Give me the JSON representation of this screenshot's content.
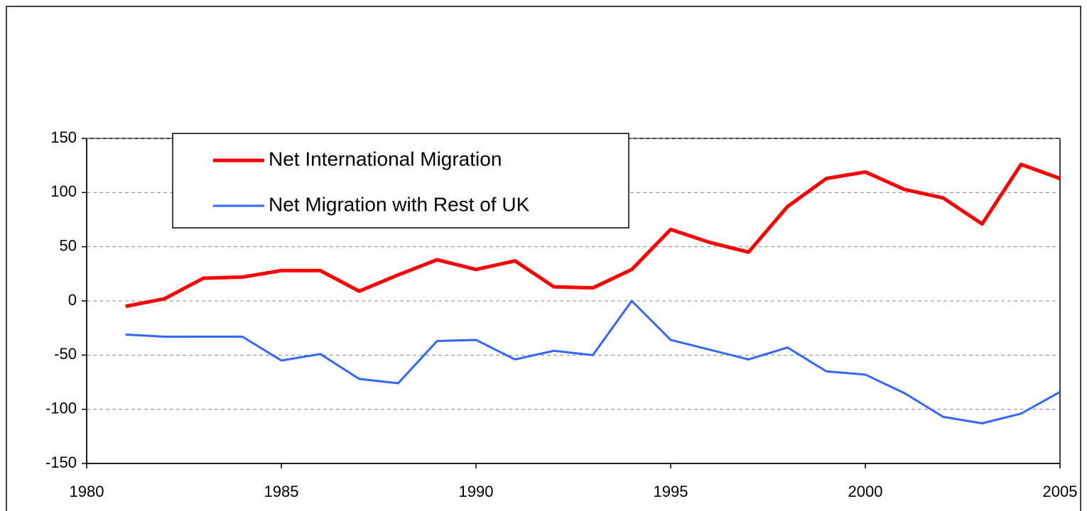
{
  "chart_data": {
    "type": "line",
    "x": [
      1981,
      1982,
      1983,
      1984,
      1985,
      1986,
      1987,
      1988,
      1989,
      1990,
      1991,
      1992,
      1993,
      1994,
      1995,
      1996,
      1997,
      1998,
      1999,
      2000,
      2001,
      2002,
      2003,
      2004,
      2005
    ],
    "series": [
      {
        "name": "Net International Migration",
        "color": "#ff0000",
        "width": 5,
        "values": [
          -5,
          2,
          21,
          22,
          28,
          28,
          9,
          24,
          38,
          29,
          37,
          13,
          12,
          29,
          66,
          54,
          45,
          87,
          113,
          119,
          103,
          95,
          71,
          126,
          113
        ]
      },
      {
        "name": "Net Migration with Rest of UK",
        "color": "#3366ff",
        "width": 3,
        "values": [
          -31,
          -33,
          -33,
          -33,
          -55,
          -49,
          -72,
          -76,
          -37,
          -36,
          -54,
          -46,
          -50,
          0,
          -36,
          -45,
          -54,
          -43,
          -65,
          -68,
          -85,
          -107,
          -113,
          -104,
          -84
        ]
      }
    ],
    "xlim": [
      1980,
      2005
    ],
    "xticks": [
      1980,
      1985,
      1990,
      1995,
      2000,
      2005
    ],
    "ylim": [
      -150,
      150
    ],
    "yticks": [
      -150,
      -100,
      -50,
      0,
      50,
      100,
      150
    ],
    "grid": true
  }
}
